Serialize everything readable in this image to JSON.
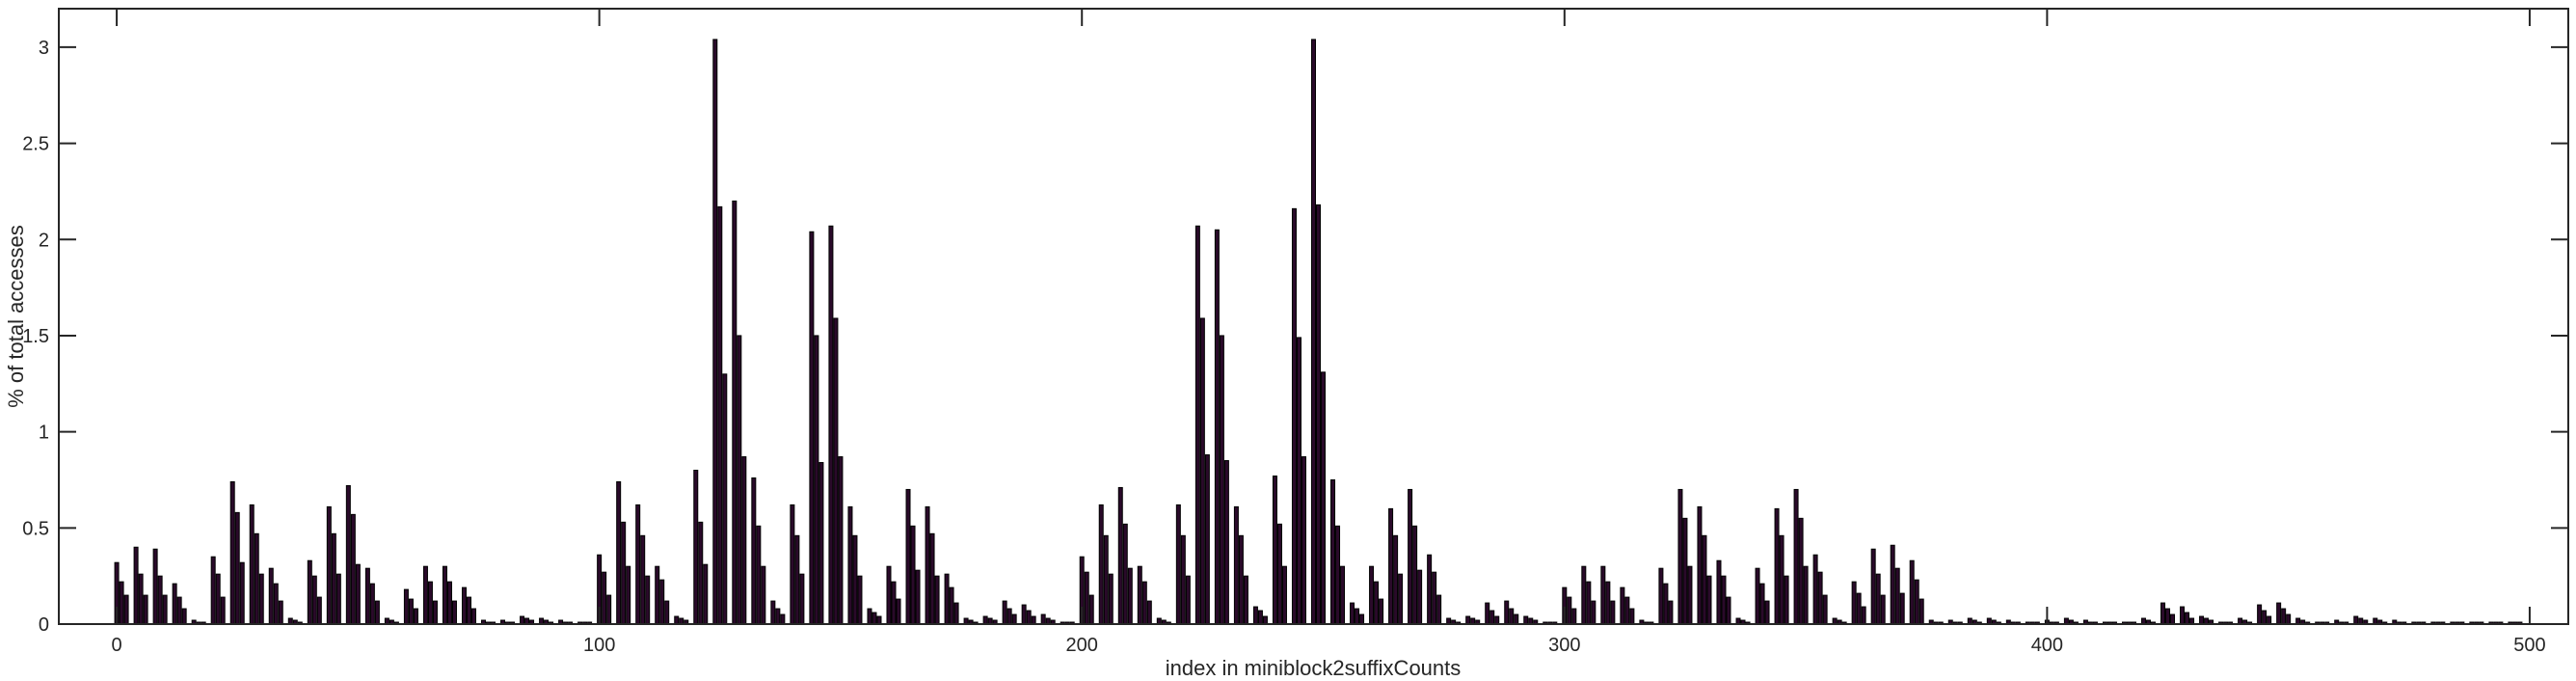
{
  "chart_data": {
    "type": "bar",
    "title": "",
    "xlabel": "index in miniblock2suffixCounts",
    "ylabel": "% of total accesses",
    "xlim": [
      -12,
      508
    ],
    "ylim": [
      0,
      3.2
    ],
    "xticks": [
      0,
      100,
      200,
      300,
      400,
      500
    ],
    "xtick_labels": [
      "0",
      "100",
      "200",
      "300",
      "400",
      "500"
    ],
    "yticks": [
      0,
      0.5,
      1,
      1.5,
      2,
      2.5,
      3
    ],
    "ytick_labels": [
      "0",
      "0.5",
      "1",
      "1.5",
      "2",
      "2.5",
      "3"
    ],
    "grid": false,
    "legend": "none",
    "bar_color": "#2a0a2a",
    "x_start": 0,
    "values": [
      0.32,
      0.22,
      0.15,
      0,
      0.4,
      0.26,
      0.15,
      0,
      0.39,
      0.25,
      0.15,
      0,
      0.21,
      0.14,
      0.08,
      0,
      0.02,
      0.01,
      0.01,
      0,
      0.35,
      0.26,
      0.14,
      0,
      0.74,
      0.58,
      0.32,
      0,
      0.62,
      0.47,
      0.26,
      0,
      0.29,
      0.21,
      0.12,
      0,
      0.03,
      0.02,
      0.01,
      0,
      0.33,
      0.25,
      0.14,
      0,
      0.61,
      0.47,
      0.26,
      0,
      0.72,
      0.57,
      0.31,
      0,
      0.29,
      0.21,
      0.12,
      0,
      0.03,
      0.02,
      0.01,
      0,
      0.18,
      0.13,
      0.08,
      0,
      0.3,
      0.22,
      0.12,
      0,
      0.3,
      0.22,
      0.12,
      0,
      0.19,
      0.14,
      0.08,
      0,
      0.02,
      0.01,
      0.01,
      0,
      0.02,
      0.01,
      0.01,
      0,
      0.04,
      0.03,
      0.02,
      0,
      0.03,
      0.02,
      0.01,
      0,
      0.02,
      0.01,
      0.01,
      0,
      0.01,
      0.01,
      0.01,
      0,
      0.36,
      0.27,
      0.15,
      0,
      0.74,
      0.53,
      0.3,
      0,
      0.62,
      0.46,
      0.25,
      0,
      0.3,
      0.23,
      0.12,
      0,
      0.04,
      0.03,
      0.02,
      0,
      0.8,
      0.53,
      0.31,
      0,
      3.04,
      2.17,
      1.3,
      0,
      2.2,
      1.5,
      0.87,
      0,
      0.76,
      0.51,
      0.3,
      0,
      0.12,
      0.08,
      0.05,
      0,
      0.62,
      0.46,
      0.26,
      0,
      2.04,
      1.5,
      0.84,
      0,
      2.07,
      1.59,
      0.87,
      0,
      0.61,
      0.46,
      0.25,
      0,
      0.08,
      0.06,
      0.04,
      0,
      0.3,
      0.22,
      0.13,
      0,
      0.7,
      0.51,
      0.28,
      0,
      0.61,
      0.47,
      0.25,
      0,
      0.26,
      0.19,
      0.11,
      0,
      0.03,
      0.02,
      0.01,
      0,
      0.04,
      0.03,
      0.02,
      0,
      0.12,
      0.08,
      0.05,
      0,
      0.1,
      0.07,
      0.04,
      0,
      0.05,
      0.03,
      0.02,
      0,
      0.01,
      0.01,
      0.01,
      0,
      0.35,
      0.27,
      0.15,
      0,
      0.62,
      0.46,
      0.26,
      0,
      0.71,
      0.52,
      0.29,
      0,
      0.3,
      0.22,
      0.12,
      0,
      0.03,
      0.02,
      0.01,
      0,
      0.62,
      0.46,
      0.25,
      0,
      2.07,
      1.59,
      0.88,
      0,
      2.05,
      1.5,
      0.85,
      0,
      0.61,
      0.46,
      0.25,
      0,
      0.09,
      0.07,
      0.04,
      0,
      0.77,
      0.52,
      0.3,
      0,
      2.16,
      1.49,
      0.87,
      0,
      3.04,
      2.18,
      1.31,
      0,
      0.75,
      0.51,
      0.3,
      0,
      0.11,
      0.08,
      0.05,
      0,
      0.3,
      0.22,
      0.13,
      0,
      0.6,
      0.46,
      0.26,
      0,
      0.7,
      0.51,
      0.28,
      0,
      0.36,
      0.27,
      0.15,
      0,
      0.03,
      0.02,
      0.01,
      0,
      0.04,
      0.03,
      0.02,
      0,
      0.11,
      0.07,
      0.04,
      0,
      0.12,
      0.08,
      0.05,
      0,
      0.04,
      0.03,
      0.02,
      0,
      0.01,
      0.01,
      0.01,
      0,
      0.19,
      0.14,
      0.08,
      0,
      0.3,
      0.22,
      0.12,
      0,
      0.3,
      0.22,
      0.12,
      0,
      0.19,
      0.14,
      0.08,
      0,
      0.02,
      0.01,
      0.01,
      0,
      0.29,
      0.21,
      0.12,
      0,
      0.7,
      0.55,
      0.3,
      0,
      0.61,
      0.46,
      0.25,
      0,
      0.33,
      0.25,
      0.14,
      0,
      0.03,
      0.02,
      0.01,
      0,
      0.29,
      0.21,
      0.12,
      0,
      0.6,
      0.46,
      0.25,
      0,
      0.7,
      0.55,
      0.3,
      0,
      0.36,
      0.27,
      0.15,
      0,
      0.03,
      0.02,
      0.01,
      0,
      0.22,
      0.16,
      0.09,
      0,
      0.39,
      0.26,
      0.15,
      0,
      0.41,
      0.29,
      0.16,
      0,
      0.33,
      0.23,
      0.13,
      0,
      0.02,
      0.01,
      0.01,
      0,
      0.02,
      0.01,
      0.01,
      0,
      0.03,
      0.02,
      0.01,
      0,
      0.03,
      0.02,
      0.01,
      0,
      0.02,
      0.01,
      0.01,
      0,
      0.01,
      0.01,
      0.01,
      0,
      0.02,
      0.01,
      0.01,
      0,
      0.03,
      0.02,
      0.01,
      0,
      0.02,
      0.01,
      0.01,
      0,
      0.01,
      0.01,
      0.01,
      0,
      0.01,
      0.01,
      0.01,
      0,
      0.03,
      0.02,
      0.01,
      0,
      0.11,
      0.08,
      0.05,
      0,
      0.09,
      0.06,
      0.03,
      0,
      0.04,
      0.03,
      0.02,
      0,
      0.01,
      0.01,
      0.01,
      0,
      0.03,
      0.02,
      0.01,
      0,
      0.1,
      0.07,
      0.04,
      0,
      0.11,
      0.08,
      0.05,
      0,
      0.03,
      0.02,
      0.01,
      0,
      0.01,
      0.01,
      0.01,
      0,
      0.02,
      0.01,
      0.01,
      0,
      0.04,
      0.03,
      0.02,
      0,
      0.03,
      0.02,
      0.01,
      0,
      0.02,
      0.01,
      0.01,
      0,
      0.01,
      0.01,
      0.01,
      0,
      0.01,
      0.01,
      0.01,
      0,
      0.01,
      0.01,
      0.01,
      0,
      0.01,
      0.01,
      0.01,
      0,
      0.01,
      0.01,
      0.01,
      0,
      0.01,
      0.01,
      0.01,
      0
    ]
  }
}
